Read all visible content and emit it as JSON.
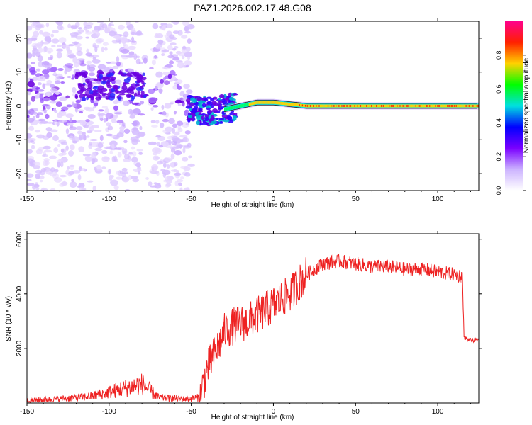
{
  "title": "PAZ1.2026.002.17.48.G08",
  "chart_data": [
    {
      "type": "heatmap",
      "name": "spectrogram",
      "xlabel": "Height of straight line (km)",
      "ylabel": "Frequency (Hz)",
      "xlim": [
        -150,
        125
      ],
      "ylim": [
        -25,
        25
      ],
      "xticks": [
        -150,
        -100,
        -50,
        0,
        50,
        100
      ],
      "yticks": [
        20,
        10,
        0,
        -10,
        -20
      ],
      "ridge": [
        {
          "x": -50,
          "y": -1
        },
        {
          "x": -40,
          "y": -1.5
        },
        {
          "x": -30,
          "y": -1
        },
        {
          "x": -20,
          "y": 0
        },
        {
          "x": -10,
          "y": 1
        },
        {
          "x": 0,
          "y": 1
        },
        {
          "x": 10,
          "y": 0.5
        },
        {
          "x": 20,
          "y": 0
        },
        {
          "x": 125,
          "y": 0
        }
      ],
      "colorbar": {
        "label": "Normalized spectral amplitude",
        "range": [
          0,
          1
        ],
        "ticks": [
          "0.0",
          "0.2",
          "0.4",
          "0.6",
          "0.8"
        ],
        "colors": [
          "#ffffff",
          "#ccb3ff",
          "#7a00ff",
          "#0000ff",
          "#00e0e0",
          "#00ff00",
          "#ffd200",
          "#ff2000",
          "#ff008c"
        ]
      }
    },
    {
      "type": "line",
      "name": "snr",
      "xlabel": "Height of straight line (km)",
      "ylabel": "SNR (10 * v/v)",
      "xlim": [
        -150,
        125
      ],
      "ylim": [
        0,
        6200
      ],
      "xticks": [
        -150,
        -100,
        -50,
        0,
        50,
        100
      ],
      "yticks": [
        2000,
        4000,
        6000
      ],
      "color": "#ee2222",
      "series": [
        {
          "name": "SNR",
          "x": [
            -150,
            -130,
            -110,
            -100,
            -90,
            -80,
            -70,
            -55,
            -45,
            -40,
            -35,
            -30,
            -25,
            -20,
            -15,
            -10,
            -5,
            0,
            10,
            20,
            30,
            40,
            50,
            60,
            70,
            80,
            90,
            100,
            110,
            115,
            116,
            120,
            125
          ],
          "y": [
            100,
            150,
            250,
            400,
            550,
            700,
            200,
            150,
            200,
            1300,
            1900,
            2600,
            2800,
            2900,
            3000,
            3200,
            3400,
            3600,
            4000,
            4700,
            5100,
            5200,
            5100,
            5000,
            5000,
            4900,
            4900,
            4800,
            4700,
            4650,
            2400,
            2300,
            2300
          ]
        }
      ]
    }
  ]
}
